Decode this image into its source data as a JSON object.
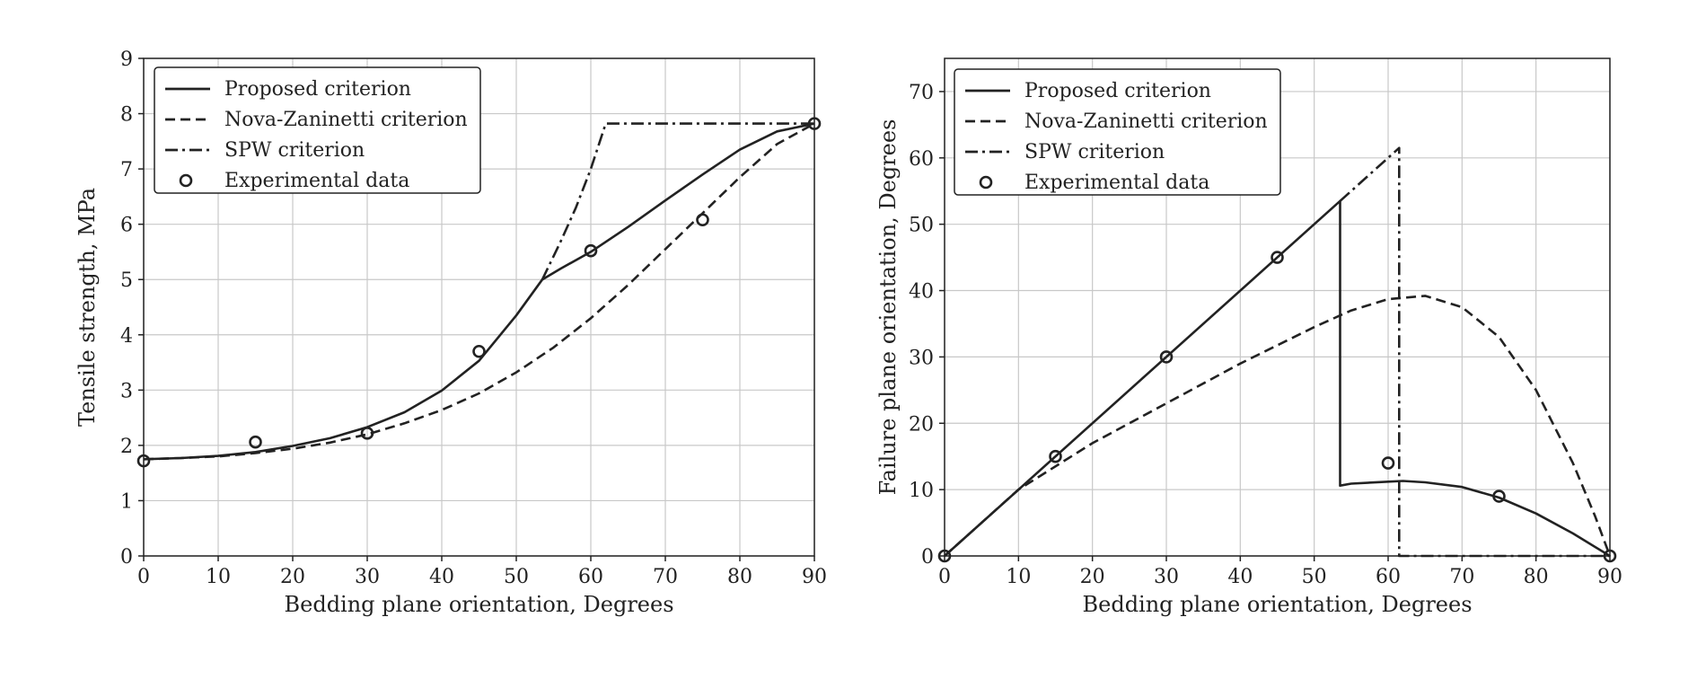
{
  "chart_data": [
    {
      "type": "line",
      "xlabel": "Bedding plane orientation, Degrees",
      "ylabel": "Tensile strength, MPa",
      "xlim": [
        0,
        90
      ],
      "ylim": [
        0,
        9
      ],
      "xticks": [
        0,
        10,
        20,
        30,
        40,
        50,
        60,
        70,
        80,
        90
      ],
      "yticks": [
        0,
        1,
        2,
        3,
        4,
        5,
        6,
        7,
        8,
        9
      ],
      "grid": true,
      "legend_position": "top-left",
      "series": [
        {
          "name": "Proposed criterion",
          "style": "solid",
          "x": [
            0,
            5,
            10,
            15,
            20,
            25,
            30,
            35,
            40,
            45,
            50,
            53.5,
            56,
            60,
            65,
            70,
            75,
            80,
            85,
            90
          ],
          "y": [
            1.75,
            1.77,
            1.81,
            1.88,
            1.99,
            2.13,
            2.33,
            2.6,
            2.99,
            3.53,
            4.35,
            5.0,
            5.2,
            5.5,
            5.95,
            6.43,
            6.9,
            7.35,
            7.68,
            7.82
          ]
        },
        {
          "name": "Nova-Zaninetti criterion",
          "style": "dashed",
          "x": [
            0,
            5,
            10,
            15,
            20,
            25,
            30,
            35,
            40,
            45,
            50,
            55,
            60,
            65,
            70,
            75,
            80,
            85,
            90
          ],
          "y": [
            1.75,
            1.77,
            1.8,
            1.86,
            1.94,
            2.05,
            2.2,
            2.4,
            2.64,
            2.94,
            3.32,
            3.77,
            4.3,
            4.9,
            5.55,
            6.2,
            6.85,
            7.45,
            7.82
          ]
        },
        {
          "name": "SPW criterion",
          "style": "dashdot",
          "x": [
            53.5,
            56,
            58,
            60,
            62,
            70,
            80,
            90
          ],
          "y": [
            5.0,
            5.7,
            6.3,
            7.0,
            7.82,
            7.82,
            7.82,
            7.82
          ]
        },
        {
          "name": "Experimental data",
          "style": "markers",
          "x": [
            0,
            15,
            30,
            45,
            60,
            75,
            90
          ],
          "y": [
            1.72,
            2.06,
            2.22,
            3.7,
            5.52,
            6.08,
            7.82
          ]
        }
      ]
    },
    {
      "type": "line",
      "xlabel": "Bedding plane orientation, Degrees",
      "ylabel": "Failure plane orientation, Degrees",
      "xlim": [
        0,
        90
      ],
      "ylim": [
        0,
        75
      ],
      "xticks": [
        0,
        10,
        20,
        30,
        40,
        50,
        60,
        70,
        80,
        90
      ],
      "yticks": [
        0,
        10,
        20,
        30,
        40,
        50,
        60,
        70
      ],
      "grid": true,
      "legend_position": "top-left",
      "series": [
        {
          "name": "Proposed criterion",
          "style": "solid",
          "x": [
            0,
            53.5,
            53.5,
            55,
            60,
            62,
            65,
            70,
            75,
            80,
            85,
            90
          ],
          "y": [
            0,
            53.5,
            10.6,
            10.9,
            11.2,
            11.3,
            11.1,
            10.4,
            8.8,
            6.4,
            3.4,
            0
          ]
        },
        {
          "name": "Nova-Zaninetti criterion",
          "style": "dashed",
          "x": [
            0,
            10,
            20,
            30,
            40,
            50,
            55,
            60,
            65,
            70,
            75,
            80,
            85,
            88,
            90
          ],
          "y": [
            0,
            10,
            17,
            23,
            29,
            34.5,
            37,
            38.7,
            39.2,
            37.5,
            33,
            25,
            14,
            6,
            0
          ]
        },
        {
          "name": "SPW criterion",
          "style": "dashdot",
          "x": [
            53.5,
            61.5,
            61.5,
            90
          ],
          "y": [
            53.5,
            61.5,
            0,
            0
          ]
        },
        {
          "name": "Experimental data",
          "style": "markers",
          "x": [
            0,
            15,
            30,
            45,
            60,
            75,
            90
          ],
          "y": [
            0,
            15,
            30,
            45,
            14,
            9,
            0
          ]
        }
      ]
    }
  ]
}
